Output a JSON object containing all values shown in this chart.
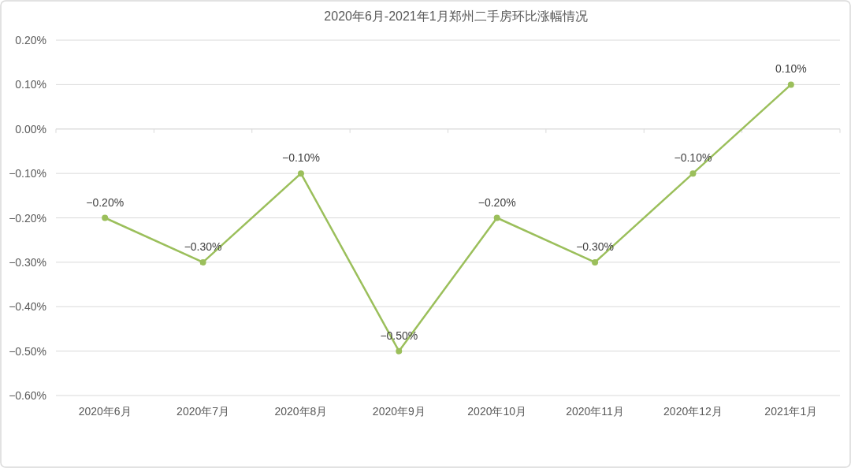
{
  "chart_data": {
    "type": "line",
    "title": "2020年6月-2021年1月郑州二手房环比涨幅情况",
    "categories": [
      "2020年6月",
      "2020年7月",
      "2020年8月",
      "2020年9月",
      "2020年10月",
      "2020年11月",
      "2020年12月",
      "2021年1月"
    ],
    "values": [
      -0.2,
      -0.3,
      -0.1,
      -0.5,
      -0.2,
      -0.3,
      -0.1,
      0.1
    ],
    "value_labels": [
      "−0.20%",
      "−0.30%",
      "−0.10%",
      "−0.50%",
      "−0.20%",
      "−0.30%",
      "−0.10%",
      "0.10%"
    ],
    "color": "#9bbf5b",
    "ylim": [
      -0.6,
      0.2
    ],
    "yticks": [
      {
        "value": 0.2,
        "label": "0.20%"
      },
      {
        "value": 0.1,
        "label": "0.10%"
      },
      {
        "value": 0,
        "label": "0.00%"
      },
      {
        "value": -0.1,
        "label": "−0.10%"
      },
      {
        "value": -0.2,
        "label": "−0.20%"
      },
      {
        "value": -0.3,
        "label": "−0.30%"
      },
      {
        "value": -0.4,
        "label": "−0.40%"
      },
      {
        "value": -0.5,
        "label": "−0.50%"
      },
      {
        "value": -0.6,
        "label": "−0.60%"
      }
    ],
    "grid": "y",
    "marker": "circle",
    "line_style": "solid"
  }
}
